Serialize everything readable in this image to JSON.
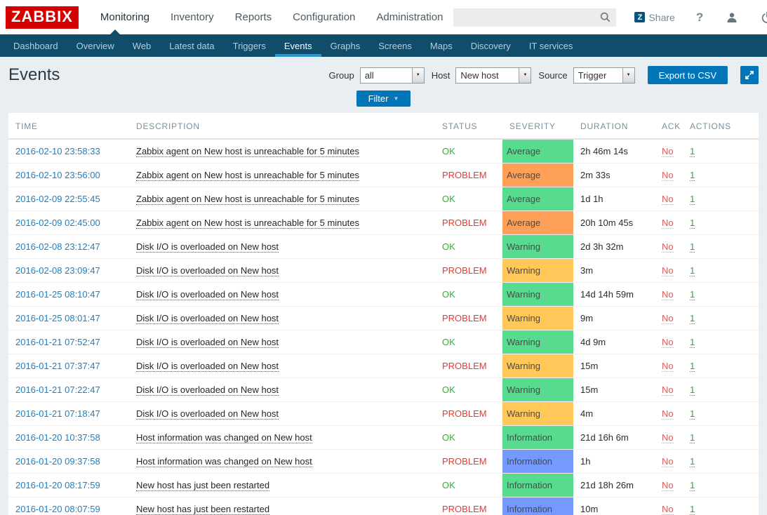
{
  "header": {
    "logo": "ZABBIX",
    "menu": [
      {
        "id": "monitoring",
        "label": "Monitoring",
        "active": true
      },
      {
        "id": "inventory",
        "label": "Inventory",
        "active": false
      },
      {
        "id": "reports",
        "label": "Reports",
        "active": false
      },
      {
        "id": "configuration",
        "label": "Configuration",
        "active": false
      },
      {
        "id": "administration",
        "label": "Administration",
        "active": false
      }
    ],
    "search": {
      "value": "",
      "placeholder": ""
    },
    "share_icon_letter": "Z",
    "share_label": "Share",
    "help_glyph": "?"
  },
  "subnav": {
    "items": [
      {
        "id": "dashboard",
        "label": "Dashboard",
        "active": false
      },
      {
        "id": "overview",
        "label": "Overview",
        "active": false
      },
      {
        "id": "web",
        "label": "Web",
        "active": false
      },
      {
        "id": "latest-data",
        "label": "Latest data",
        "active": false
      },
      {
        "id": "triggers",
        "label": "Triggers",
        "active": false
      },
      {
        "id": "events",
        "label": "Events",
        "active": true
      },
      {
        "id": "graphs",
        "label": "Graphs",
        "active": false
      },
      {
        "id": "screens",
        "label": "Screens",
        "active": false
      },
      {
        "id": "maps",
        "label": "Maps",
        "active": false
      },
      {
        "id": "discovery",
        "label": "Discovery",
        "active": false
      },
      {
        "id": "it-services",
        "label": "IT services",
        "active": false
      }
    ]
  },
  "page": {
    "title": "Events",
    "filters": {
      "group": {
        "label": "Group",
        "value": "all"
      },
      "host": {
        "label": "Host",
        "value": "New host"
      },
      "source": {
        "label": "Source",
        "value": "Trigger"
      }
    },
    "export_button": "Export to CSV",
    "filter_button": "Filter"
  },
  "table": {
    "columns": [
      "TIME",
      "DESCRIPTION",
      "STATUS",
      "SEVERITY",
      "DURATION",
      "ACK",
      "ACTIONS"
    ],
    "rows": [
      {
        "time": "2016-02-10 23:58:33",
        "description": "Zabbix agent on New host is unreachable for 5 minutes",
        "status": "OK",
        "severity": "Average",
        "severity_bg": "#59db8f",
        "duration": "2h 46m 14s",
        "ack": "No",
        "actions": "1"
      },
      {
        "time": "2016-02-10 23:56:00",
        "description": "Zabbix agent on New host is unreachable for 5 minutes",
        "status": "PROBLEM",
        "severity": "Average",
        "severity_bg": "#ffa059",
        "duration": "2m 33s",
        "ack": "No",
        "actions": "1"
      },
      {
        "time": "2016-02-09 22:55:45",
        "description": "Zabbix agent on New host is unreachable for 5 minutes",
        "status": "OK",
        "severity": "Average",
        "severity_bg": "#59db8f",
        "duration": "1d 1h",
        "ack": "No",
        "actions": "1"
      },
      {
        "time": "2016-02-09 02:45:00",
        "description": "Zabbix agent on New host is unreachable for 5 minutes",
        "status": "PROBLEM",
        "severity": "Average",
        "severity_bg": "#ffa059",
        "duration": "20h 10m 45s",
        "ack": "No",
        "actions": "1"
      },
      {
        "time": "2016-02-08 23:12:47",
        "description": "Disk I/O is overloaded on New host",
        "status": "OK",
        "severity": "Warning",
        "severity_bg": "#59db8f",
        "duration": "2d 3h 32m",
        "ack": "No",
        "actions": "1"
      },
      {
        "time": "2016-02-08 23:09:47",
        "description": "Disk I/O is overloaded on New host",
        "status": "PROBLEM",
        "severity": "Warning",
        "severity_bg": "#ffc859",
        "duration": "3m",
        "ack": "No",
        "actions": "1"
      },
      {
        "time": "2016-01-25 08:10:47",
        "description": "Disk I/O is overloaded on New host",
        "status": "OK",
        "severity": "Warning",
        "severity_bg": "#59db8f",
        "duration": "14d 14h 59m",
        "ack": "No",
        "actions": "1"
      },
      {
        "time": "2016-01-25 08:01:47",
        "description": "Disk I/O is overloaded on New host",
        "status": "PROBLEM",
        "severity": "Warning",
        "severity_bg": "#ffc859",
        "duration": "9m",
        "ack": "No",
        "actions": "1"
      },
      {
        "time": "2016-01-21 07:52:47",
        "description": "Disk I/O is overloaded on New host",
        "status": "OK",
        "severity": "Warning",
        "severity_bg": "#59db8f",
        "duration": "4d 9m",
        "ack": "No",
        "actions": "1"
      },
      {
        "time": "2016-01-21 07:37:47",
        "description": "Disk I/O is overloaded on New host",
        "status": "PROBLEM",
        "severity": "Warning",
        "severity_bg": "#ffc859",
        "duration": "15m",
        "ack": "No",
        "actions": "1"
      },
      {
        "time": "2016-01-21 07:22:47",
        "description": "Disk I/O is overloaded on New host",
        "status": "OK",
        "severity": "Warning",
        "severity_bg": "#59db8f",
        "duration": "15m",
        "ack": "No",
        "actions": "1"
      },
      {
        "time": "2016-01-21 07:18:47",
        "description": "Disk I/O is overloaded on New host",
        "status": "PROBLEM",
        "severity": "Warning",
        "severity_bg": "#ffc859",
        "duration": "4m",
        "ack": "No",
        "actions": "1"
      },
      {
        "time": "2016-01-20 10:37:58",
        "description": "Host information was changed on New host",
        "status": "OK",
        "severity": "Information",
        "severity_bg": "#59db8f",
        "duration": "21d 16h 6m",
        "ack": "No",
        "actions": "1"
      },
      {
        "time": "2016-01-20 09:37:58",
        "description": "Host information was changed on New host",
        "status": "PROBLEM",
        "severity": "Information",
        "severity_bg": "#7499ff",
        "duration": "1h",
        "ack": "No",
        "actions": "1"
      },
      {
        "time": "2016-01-20 08:17:59",
        "description": "New host has just been restarted",
        "status": "OK",
        "severity": "Information",
        "severity_bg": "#59db8f",
        "duration": "21d 18h 26m",
        "ack": "No",
        "actions": "1"
      },
      {
        "time": "2016-01-20 08:07:59",
        "description": "New host has just been restarted",
        "status": "PROBLEM",
        "severity": "Information",
        "severity_bg": "#7499ff",
        "duration": "10m",
        "ack": "No",
        "actions": "1"
      }
    ]
  },
  "colors": {
    "brand_red": "#d40000",
    "nav_bg": "#104d6b",
    "active_tab_underline": "#2b97d1",
    "button_blue": "#0275b8",
    "link_blue": "#1c81c4",
    "ok_green_text": "#2bb52b",
    "problem_red_text": "#e13a34",
    "ack_no_red": "#e45959",
    "actions_green": "#3d9b43",
    "severity_ok_bg": "#59db8f",
    "severity_average_bg": "#ffa059",
    "severity_warning_bg": "#ffc859",
    "severity_information_bg": "#7499ff",
    "page_bg": "#e9eef2"
  }
}
